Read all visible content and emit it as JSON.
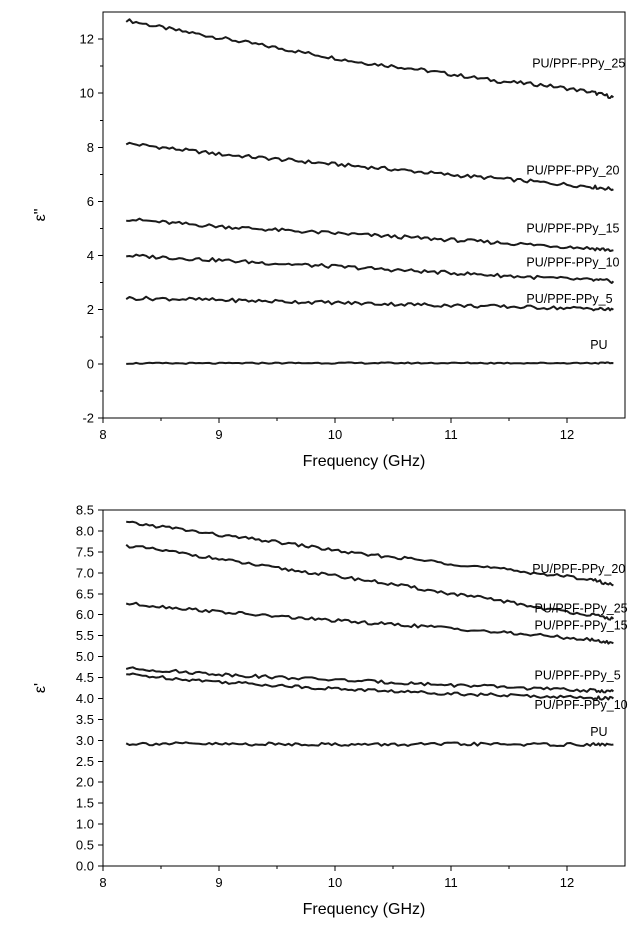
{
  "chart_data": [
    {
      "type": "line",
      "xlabel": "Frequency (GHz)",
      "ylabel": "ε\"",
      "xlim": [
        8,
        12.5
      ],
      "ylim": [
        -2,
        13
      ],
      "xticks": [
        8,
        9,
        10,
        11,
        12
      ],
      "yticks": [
        -2,
        0,
        2,
        4,
        6,
        8,
        10,
        12
      ],
      "x": [
        8.2,
        8.6,
        9.0,
        9.4,
        9.8,
        10.2,
        10.6,
        11.0,
        11.4,
        11.8,
        12.2,
        12.4
      ],
      "series": [
        {
          "name": "PU/PPF-PPy_25",
          "values": [
            12.7,
            12.35,
            12.05,
            11.75,
            11.45,
            11.15,
            10.95,
            10.7,
            10.45,
            10.3,
            10.05,
            9.85
          ]
        },
        {
          "name": "PU/PPF-PPy_20",
          "values": [
            8.15,
            7.95,
            7.75,
            7.6,
            7.45,
            7.3,
            7.15,
            6.98,
            6.85,
            6.7,
            6.55,
            6.45
          ]
        },
        {
          "name": "PU/PPF-PPy_15",
          "values": [
            5.35,
            5.2,
            5.08,
            4.97,
            4.87,
            4.78,
            4.68,
            4.58,
            4.48,
            4.38,
            4.27,
            4.2
          ]
        },
        {
          "name": "PU/PPF-PPy_10",
          "values": [
            4.0,
            3.92,
            3.83,
            3.73,
            3.64,
            3.55,
            3.45,
            3.36,
            3.27,
            3.18,
            3.1,
            3.05
          ]
        },
        {
          "name": "PU/PPF-PPy_5",
          "values": [
            2.43,
            2.4,
            2.36,
            2.32,
            2.28,
            2.24,
            2.2,
            2.16,
            2.12,
            2.08,
            2.04,
            2.0
          ]
        },
        {
          "name": "PU",
          "values": [
            0.02,
            0.02,
            0.02,
            0.03,
            0.03,
            0.03,
            0.03,
            0.03,
            0.03,
            0.03,
            0.03,
            0.03
          ]
        }
      ],
      "labels": [
        {
          "text": "PU/PPF-PPy_25",
          "x": 11.7,
          "y": 10.95
        },
        {
          "text": "PU/PPF-PPy_20",
          "x": 11.65,
          "y": 7.0
        },
        {
          "text": "PU/PPF-PPy_15",
          "x": 11.65,
          "y": 4.85
        },
        {
          "text": "PU/PPF-PPy_10",
          "x": 11.65,
          "y": 3.6
        },
        {
          "text": "PU/PPF-PPy_5",
          "x": 11.65,
          "y": 2.25
        },
        {
          "text": "PU",
          "x": 12.2,
          "y": 0.55
        }
      ]
    },
    {
      "type": "line",
      "xlabel": "Frequency (GHz)",
      "ylabel": "ε'",
      "xlim": [
        8,
        12.5
      ],
      "ylim": [
        0,
        8.5
      ],
      "xticks": [
        8,
        9,
        10,
        11,
        12
      ],
      "yticks": [
        0.0,
        0.5,
        1.0,
        1.5,
        2.0,
        2.5,
        3.0,
        3.5,
        4.0,
        4.5,
        5.0,
        5.5,
        6.0,
        6.5,
        7.0,
        7.5,
        8.0,
        8.5
      ],
      "x": [
        8.2,
        8.6,
        9.0,
        9.4,
        9.8,
        10.2,
        10.6,
        11.0,
        11.4,
        11.8,
        12.2,
        12.4
      ],
      "series": [
        {
          "name": "PU/PPF-PPy_20",
          "values": [
            8.2,
            8.07,
            7.9,
            7.77,
            7.62,
            7.45,
            7.35,
            7.22,
            7.1,
            6.97,
            6.85,
            6.7
          ]
        },
        {
          "name": "PU/PPF-PPy_25",
          "values": [
            7.65,
            7.5,
            7.33,
            7.15,
            7.0,
            6.85,
            6.68,
            6.5,
            6.35,
            6.15,
            6.0,
            5.9
          ]
        },
        {
          "name": "PU/PPF-PPy_15",
          "values": [
            6.27,
            6.17,
            6.07,
            5.98,
            5.9,
            5.82,
            5.75,
            5.68,
            5.58,
            5.5,
            5.4,
            5.32
          ]
        },
        {
          "name": "PU/PPF-PPy_5",
          "values": [
            4.72,
            4.65,
            4.58,
            4.52,
            4.47,
            4.42,
            4.37,
            4.32,
            4.28,
            4.23,
            4.19,
            4.17
          ]
        },
        {
          "name": "PU/PPF-PPy_10",
          "values": [
            4.58,
            4.48,
            4.4,
            4.33,
            4.26,
            4.21,
            4.16,
            4.12,
            4.08,
            4.05,
            4.02,
            4.0
          ]
        },
        {
          "name": "PU",
          "values": [
            2.92,
            2.92,
            2.91,
            2.91,
            2.91,
            2.9,
            2.9,
            2.91,
            2.91,
            2.9,
            2.9,
            2.9
          ]
        }
      ],
      "labels": [
        {
          "text": "PU/PPF-PPy_20",
          "x": 11.7,
          "y": 7.0
        },
        {
          "text": "PU/PPF-PPy_25",
          "x": 11.72,
          "y": 6.05
        },
        {
          "text": "PU/PPF-PPy_15",
          "x": 11.72,
          "y": 5.65
        },
        {
          "text": "PU/PPF-PPy_5",
          "x": 11.72,
          "y": 4.45
        },
        {
          "text": "PU/PPF-PPy_10",
          "x": 11.72,
          "y": 3.75
        },
        {
          "text": "PU",
          "x": 12.2,
          "y": 3.1
        }
      ]
    }
  ]
}
